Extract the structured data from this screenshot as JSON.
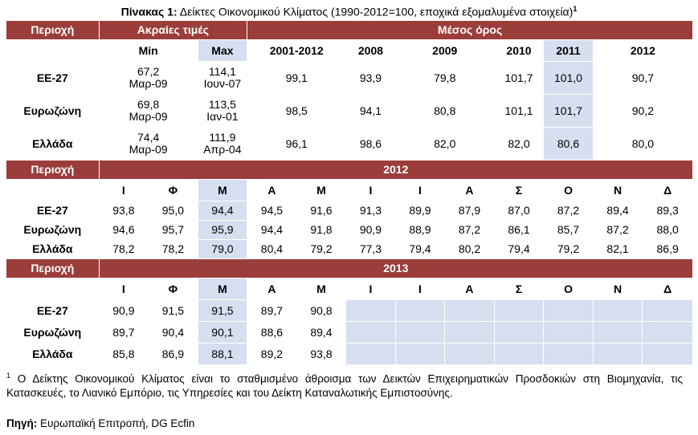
{
  "title": {
    "prefix": "Πίνακας 1:",
    "text": "Δείκτες Οικονομικού Κλίματος (1990-2012=100, εποχικά εξομαλυμένα στοιχεία)",
    "sup": "1"
  },
  "block1": {
    "region_header": "Περιοχή",
    "extremes_header": "Ακραίες τιμές",
    "mean_header": "Μέσος όρος",
    "min_label": "Min",
    "max_label": "Max",
    "periods": [
      "2001-2012",
      "2008",
      "2009",
      "2010",
      "2011",
      "2012"
    ],
    "rows": [
      {
        "region": "ΕΕ-27",
        "min_val": "67,2",
        "min_date": "Μαρ-09",
        "max_val": "114,1",
        "max_date": "Ιουν-07",
        "values": [
          "99,1",
          "93,9",
          "79,8",
          "101,7",
          "101,0",
          "90,7"
        ]
      },
      {
        "region": "Ευρωζώνη",
        "min_val": "69,8",
        "min_date": "Μαρ-09",
        "max_val": "113,5",
        "max_date": "Ιαν-01",
        "values": [
          "98,5",
          "94,1",
          "80,8",
          "101,1",
          "101,7",
          "90,2"
        ]
      },
      {
        "region": "Ελλάδα",
        "min_val": "74,4",
        "min_date": "Μαρ-09",
        "max_val": "111,9",
        "max_date": "Απρ-04",
        "values": [
          "96,1",
          "98,6",
          "82,0",
          "82,0",
          "80,6",
          "80,0"
        ]
      }
    ]
  },
  "block2": {
    "region_header": "Περιοχή",
    "year": "2012",
    "months": [
      "Ι",
      "Φ",
      "Μ",
      "Α",
      "Μ",
      "Ι",
      "Ι",
      "Α",
      "Σ",
      "Ο",
      "Ν",
      "Δ"
    ],
    "rows": [
      {
        "region": "ΕΕ-27",
        "values": [
          "93,8",
          "95,0",
          "94,4",
          "94,5",
          "91,6",
          "91,3",
          "89,9",
          "87,9",
          "87,0",
          "87,2",
          "89,4",
          "89,3"
        ]
      },
      {
        "region": "Ευρωζώνη",
        "values": [
          "94,6",
          "95,7",
          "95,9",
          "94,4",
          "91,8",
          "90,9",
          "88,9",
          "87,2",
          "86,1",
          "85,7",
          "87,2",
          "88,0"
        ]
      },
      {
        "region": "Ελλάδα",
        "values": [
          "78,2",
          "78,2",
          "79,0",
          "80,4",
          "79,2",
          "77,3",
          "79,4",
          "80,2",
          "79,4",
          "79,2",
          "82,1",
          "86,9"
        ]
      }
    ]
  },
  "block3": {
    "region_header": "Περιοχή",
    "year": "2013",
    "months": [
      "Ι",
      "Φ",
      "Μ",
      "Α",
      "Μ",
      "Ι",
      "Ι",
      "Α",
      "Σ",
      "Ο",
      "Ν",
      "Δ"
    ],
    "rows": [
      {
        "region": "ΕΕ-27",
        "values": [
          "90,9",
          "91,5",
          "91,5",
          "89,7",
          "90,8",
          "",
          "",
          "",
          "",
          "",
          "",
          ""
        ]
      },
      {
        "region": "Ευρωζώνη",
        "values": [
          "89,7",
          "90,4",
          "90,1",
          "88,6",
          "89,4",
          "",
          "",
          "",
          "",
          "",
          "",
          ""
        ]
      },
      {
        "region": "Ελλάδα",
        "values": [
          "85,8",
          "86,9",
          "88,1",
          "89,2",
          "93,8",
          "",
          "",
          "",
          "",
          "",
          "",
          ""
        ]
      }
    ]
  },
  "footnote": {
    "sup": "1",
    "text": "Ο Δείκτης Οικονομικού Κλίματος είναι το σταθμισμένο άθροισμα των Δεικτών Επιχειρηματικών Προσδοκιών στη Βιομηχανία, τις Κατασκευές, το Λιανικό Εμπόριο, τις Υπηρεσίες και του Δείκτη Καταναλωτικής Εμπιστοσύνης."
  },
  "source": {
    "label": "Πηγή:",
    "text": "Ευρωπαϊκή Επιτροπή, DG Ecfin"
  }
}
